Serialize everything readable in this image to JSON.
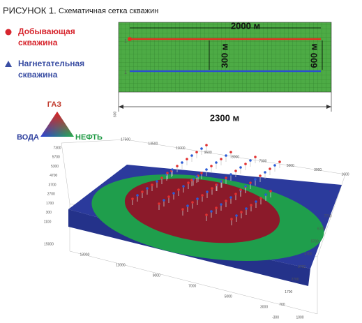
{
  "figure": {
    "label": "РИСУНОК 1.",
    "caption": "Схематичная сетка скважин"
  },
  "legend": {
    "producer": [
      "Добывающая",
      "скважина"
    ],
    "injector": [
      "Нагнетательная",
      "скважина"
    ]
  },
  "grid_scheme": {
    "top_length": "2000 м",
    "inner_spacing": "300 м",
    "outer_spacing": "600 м",
    "total_width": "2300 м",
    "row_marks": [
      "1",
      "1"
    ],
    "side_mark": "600"
  },
  "ternary": {
    "top": "ГАЗ",
    "left": "ВОДА",
    "right": "НЕФТЬ"
  },
  "model_axes": {
    "back": [
      "17500",
      "13500",
      "11000",
      "9600",
      "8000",
      "7000",
      "5000",
      "3000",
      "1600"
    ],
    "left": [
      "7300",
      "5700",
      "5300",
      "4700",
      "3700",
      "2700",
      "1700",
      "300",
      "1100"
    ],
    "front": [
      "15000",
      "13000",
      "11000",
      "9000",
      "7000",
      "5000",
      "3000",
      "1000"
    ],
    "right": [
      "7700",
      "6700",
      "5700",
      "4700",
      "3700",
      "2700",
      "1700",
      "700",
      "-300"
    ]
  }
}
